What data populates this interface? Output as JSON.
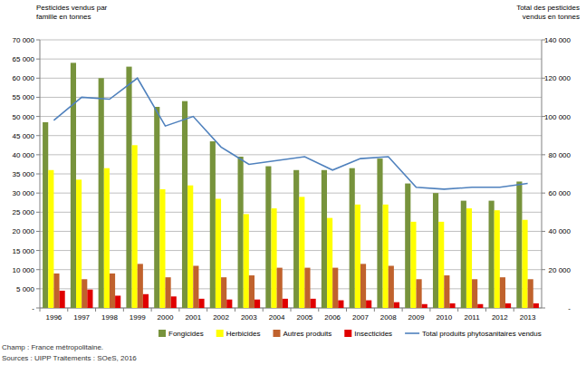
{
  "chart_data": {
    "type": "bar",
    "y_label": "Pesticides vendus par famille en tonnes",
    "y2_label": "Total des pesticides vendus en tonnes",
    "notes": [
      "Champ : France métropolitaine.",
      "Sources : UIPP Traitements : SOeS, 2016"
    ],
    "categories": [
      "1996",
      "1997",
      "1998",
      "1999",
      "2000",
      "2001",
      "2002",
      "2003",
      "2004",
      "2005",
      "2006",
      "2007",
      "2008",
      "2009",
      "2010",
      "2011",
      "2012",
      "2013"
    ],
    "series": [
      {
        "name": "Fongicides",
        "color": "#77933c",
        "type": "bar",
        "values": [
          48500,
          64000,
          60000,
          63000,
          52500,
          54000,
          43500,
          39500,
          37000,
          36000,
          36000,
          36500,
          39000,
          32500,
          30000,
          28000,
          28000,
          33000
        ]
      },
      {
        "name": "Herbicides",
        "color": "#ffff00",
        "type": "bar",
        "values": [
          36000,
          33500,
          36500,
          42500,
          31000,
          32000,
          28500,
          24500,
          26000,
          29000,
          23500,
          27000,
          27000,
          22500,
          22500,
          26000,
          25500,
          23000
        ]
      },
      {
        "name": "Autres produits",
        "color": "#c0622d",
        "type": "bar",
        "values": [
          9000,
          7500,
          9000,
          11500,
          8000,
          11000,
          8000,
          8500,
          10500,
          10500,
          10500,
          11500,
          11000,
          7500,
          8500,
          7500,
          8000,
          7500
        ]
      },
      {
        "name": "Insecticides",
        "color": "#e00000",
        "type": "bar",
        "values": [
          4500,
          4800,
          3200,
          3600,
          3000,
          2400,
          2200,
          2200,
          2400,
          2400,
          2000,
          2000,
          1500,
          1000,
          1200,
          1000,
          1200,
          1200
        ]
      },
      {
        "name": "Total produits phytosanitaires vendus",
        "color": "#4f81bd",
        "type": "line",
        "axis": "y2",
        "values": [
          98000,
          110000,
          109000,
          120000,
          95000,
          100000,
          84000,
          75000,
          77000,
          79000,
          72000,
          78000,
          79000,
          63000,
          62000,
          63000,
          63000,
          65000
        ]
      }
    ],
    "ylim": [
      0,
      70000
    ],
    "yticks": [
      {
        "value": 0,
        "label": "-"
      },
      {
        "value": 5000,
        "label": "5 000"
      },
      {
        "value": 10000,
        "label": "10 000"
      },
      {
        "value": 15000,
        "label": "15 000"
      },
      {
        "value": 20000,
        "label": "20 000"
      },
      {
        "value": 25000,
        "label": "25 000"
      },
      {
        "value": 30000,
        "label": "30 000"
      },
      {
        "value": 35000,
        "label": "35 000"
      },
      {
        "value": 40000,
        "label": "40 000"
      },
      {
        "value": 45000,
        "label": "45 000"
      },
      {
        "value": 50000,
        "label": "50 000"
      },
      {
        "value": 55000,
        "label": "55 000"
      },
      {
        "value": 60000,
        "label": "60 000"
      },
      {
        "value": 65000,
        "label": "65 000"
      },
      {
        "value": 70000,
        "label": "70 000"
      }
    ],
    "y2lim": [
      0,
      140000
    ],
    "y2ticks": [
      {
        "value": 0,
        "label": "-"
      },
      {
        "value": 20000,
        "label": "20 000"
      },
      {
        "value": 40000,
        "label": "40 000"
      },
      {
        "value": 60000,
        "label": "60 000"
      },
      {
        "value": 80000,
        "label": "80 000"
      },
      {
        "value": 100000,
        "label": "100 000"
      },
      {
        "value": 120000,
        "label": "120 000"
      },
      {
        "value": 140000,
        "label": "140 000"
      }
    ],
    "grid": true,
    "legend": "bottom"
  }
}
